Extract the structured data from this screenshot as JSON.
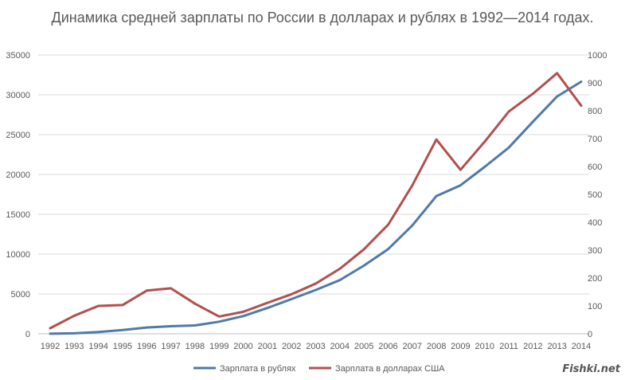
{
  "title": "Динамика средней зарплаты по России в долларах и рублях в 1992—2014 годах.",
  "watermark": "Fishki.net",
  "chart_data": {
    "type": "line",
    "title": "Динамика средней зарплаты по России в долларах и рублях в 1992—2014 годах.",
    "categories": [
      "1992",
      "1993",
      "1994",
      "1995",
      "1996",
      "1997",
      "1998",
      "1999",
      "2000",
      "2001",
      "2002",
      "2003",
      "2004",
      "2005",
      "2006",
      "2007",
      "2008",
      "2009",
      "2010",
      "2011",
      "2012",
      "2013",
      "2014"
    ],
    "y_left": {
      "min": 0,
      "max": 35000,
      "ticks": [
        0,
        5000,
        10000,
        15000,
        20000,
        25000,
        30000,
        35000
      ]
    },
    "y_right": {
      "min": 0,
      "max": 1000,
      "ticks": [
        0,
        100,
        200,
        300,
        400,
        500,
        600,
        700,
        800,
        900,
        1000
      ]
    },
    "grid": true,
    "legend_position": "bottom",
    "series": [
      {
        "name": "Зарплата в рублях",
        "axis": "left",
        "color": "#4F7AA8",
        "values": [
          6,
          58,
          221,
          473,
          790,
          950,
          1051,
          1523,
          2223,
          3240,
          4360,
          5499,
          6740,
          8555,
          10634,
          13593,
          17290,
          18638,
          20952,
          23369,
          26629,
          29792,
          31648
        ]
      },
      {
        "name": "Зарплата в долларах США",
        "axis": "right",
        "color": "#B0504D",
        "values": [
          20,
          65,
          100,
          103,
          155,
          163,
          108,
          62,
          79,
          111,
          142,
          180,
          233,
          303,
          391,
          532,
          697,
          588,
          689,
          797,
          861,
          935,
          818
        ]
      }
    ]
  }
}
